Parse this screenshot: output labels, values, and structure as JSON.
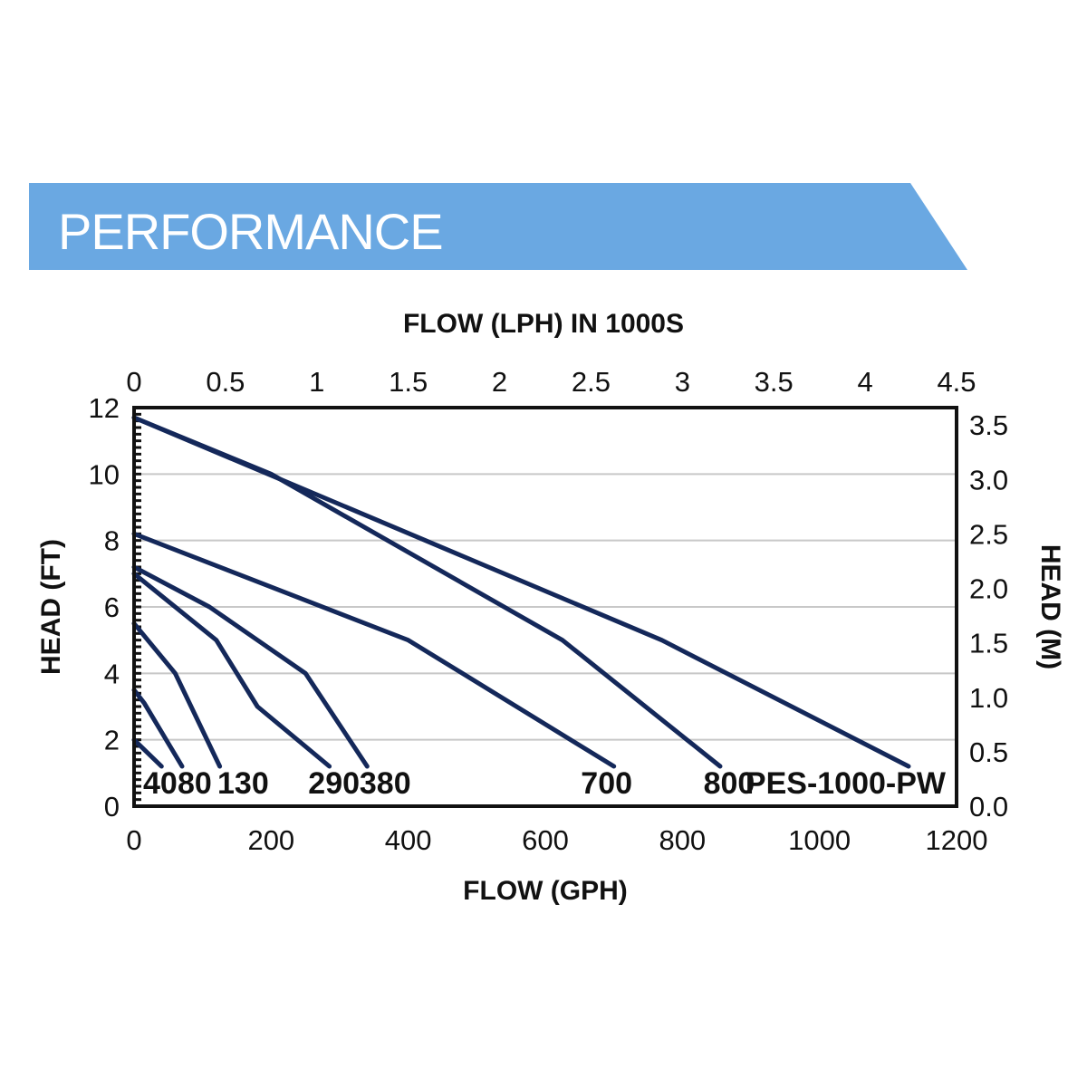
{
  "banner": {
    "title": "PERFORMANCE",
    "color": "#6aa8e2"
  },
  "chart_data": {
    "type": "line",
    "title": "",
    "xlabel": "FLOW (GPH)",
    "x2label": "FLOW (LPH) IN 1000S",
    "ylabel": "HEAD (FT)",
    "y2label": "HEAD (M)",
    "xlim": [
      0,
      1200
    ],
    "ylim": [
      0,
      12
    ],
    "x2lim": [
      0,
      4.5
    ],
    "y2lim": [
      0,
      3.66
    ],
    "x_ticks": [
      "0",
      "200",
      "400",
      "600",
      "800",
      "1000",
      "1200"
    ],
    "x2_ticks": [
      "0",
      "0.5",
      "1",
      "1.5",
      "2",
      "2.5",
      "3",
      "3.5",
      "4",
      "4.5"
    ],
    "y_ticks": [
      "0",
      "2",
      "4",
      "6",
      "8",
      "10",
      "12"
    ],
    "y2_ticks": [
      "0.0",
      "0.5",
      "1.0",
      "1.5",
      "2.0",
      "2.5",
      "3.0",
      "3.5"
    ],
    "grid": true,
    "line_color": "#14285a",
    "series": [
      {
        "name": "40",
        "x": [
          0,
          40
        ],
        "y": [
          2.0,
          1.2
        ]
      },
      {
        "name": "80",
        "x": [
          0,
          15,
          70
        ],
        "y": [
          3.5,
          3.1,
          1.2
        ]
      },
      {
        "name": "130",
        "x": [
          0,
          60,
          125
        ],
        "y": [
          5.5,
          4.0,
          1.2
        ]
      },
      {
        "name": "290",
        "x": [
          0,
          120,
          180,
          285
        ],
        "y": [
          7.0,
          5.0,
          3.0,
          1.2
        ]
      },
      {
        "name": "380",
        "x": [
          0,
          110,
          250,
          340
        ],
        "y": [
          7.2,
          6.0,
          4.0,
          1.2
        ]
      },
      {
        "name": "700",
        "x": [
          0,
          400,
          700
        ],
        "y": [
          8.2,
          5.0,
          1.2
        ]
      },
      {
        "name": "800",
        "x": [
          0,
          200,
          625,
          855
        ],
        "y": [
          11.7,
          10.0,
          5.0,
          1.2
        ]
      },
      {
        "name": "PES-1000-PW",
        "x": [
          0,
          770,
          1130
        ],
        "y": [
          11.7,
          5.0,
          1.2
        ]
      }
    ]
  }
}
